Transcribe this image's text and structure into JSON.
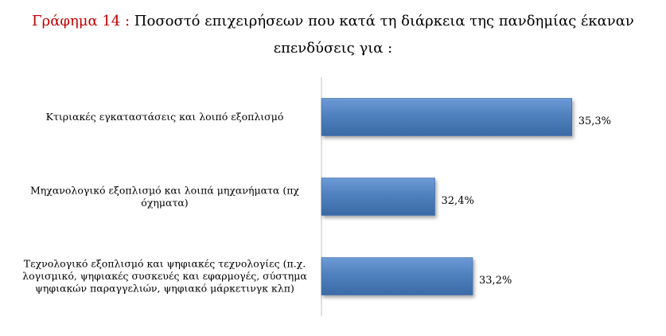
{
  "title": {
    "prefix": "Γράφημα 14 :",
    "text_line1": "Ποσοστό επιχειρήσεων που κατά τη διάρκεια της πανδημίας έκαναν",
    "text_line2": "επενδύσεις για :"
  },
  "chart_data": {
    "type": "bar",
    "orientation": "horizontal",
    "categories": [
      [
        "Κτιριακές εγκαταστάσεις και λοιπό εξοπλισμό"
      ],
      [
        "Μηχανολογικό εξοπλισμό και λοιπά μηχανήματα (πχ",
        "όχηματα)"
      ],
      [
        "Τεχνολογικό εξοπλισμό και ψηφιακές τεχνολογίες (π.χ.",
        "λογισμικό, ψηφιακές συσκευές και εφαρμογές, σύστημα",
        "ψηφιακών παραγγελιών, ψηφιακό μάρκετινγκ κλπ)"
      ]
    ],
    "values": [
      35.3,
      32.4,
      33.2
    ],
    "value_labels": [
      "35,3%",
      "32,4%",
      "33,2%"
    ],
    "bar_color": "#4f81bd",
    "xlim": [
      30.0,
      36.5
    ],
    "grid": false,
    "legend": "none"
  }
}
